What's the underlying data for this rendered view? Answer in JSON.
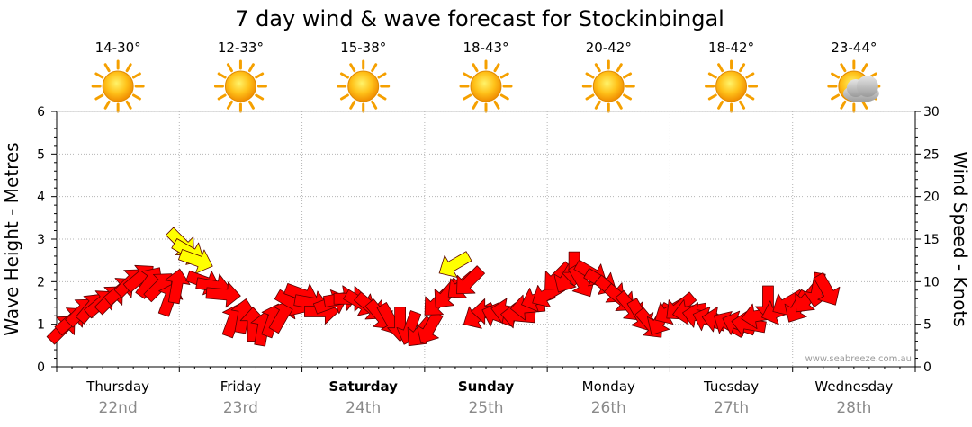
{
  "chart_data": {
    "type": "scatter",
    "title": "7 day wind & wave forecast for Stockinbingal",
    "ylabel_left": "Wave Height - Metres",
    "ylabel_right": "Wind Speed - Knots",
    "ylim_left": [
      0,
      6
    ],
    "ylim_right": [
      0,
      30
    ],
    "yticks_left": [
      "0",
      "1",
      "2",
      "3",
      "4",
      "5",
      "6"
    ],
    "yticks_right": [
      "0",
      "5",
      "10",
      "15",
      "20",
      "25",
      "30"
    ],
    "grid": true,
    "credit": "www.seabreeze.com.au",
    "days": [
      {
        "name": "Thursday",
        "date": "22nd",
        "temp": "14-30°",
        "icon": "sun-icon",
        "bold": false
      },
      {
        "name": "Friday",
        "date": "23rd",
        "temp": "12-33°",
        "icon": "sun-icon",
        "bold": false
      },
      {
        "name": "Saturday",
        "date": "24th",
        "temp": "15-38°",
        "icon": "sun-icon",
        "bold": true
      },
      {
        "name": "Sunday",
        "date": "25th",
        "temp": "18-43°",
        "icon": "sun-icon",
        "bold": true
      },
      {
        "name": "Monday",
        "date": "26th",
        "temp": "20-42°",
        "icon": "sun-icon",
        "bold": false
      },
      {
        "name": "Tuesday",
        "date": "27th",
        "temp": "18-42°",
        "icon": "sun-icon",
        "bold": false
      },
      {
        "name": "Wednesday",
        "date": "28th",
        "temp": "23-44°",
        "icon": "partly-cloudy-icon",
        "bold": false
      }
    ],
    "series": [
      {
        "name": "Wind Speed",
        "units": "knots",
        "color_normal": "#ff0000",
        "color_highlight": "#ffff00",
        "points": [
          {
            "t": 0.05,
            "v": 4.5,
            "dir": 225,
            "c": "normal"
          },
          {
            "t": 0.12,
            "v": 5.5,
            "dir": 230,
            "c": "normal"
          },
          {
            "t": 0.2,
            "v": 6.5,
            "dir": 225,
            "c": "normal"
          },
          {
            "t": 0.28,
            "v": 7.0,
            "dir": 220,
            "c": "normal"
          },
          {
            "t": 0.36,
            "v": 7.5,
            "dir": 230,
            "c": "normal"
          },
          {
            "t": 0.44,
            "v": 8.0,
            "dir": 225,
            "c": "normal"
          },
          {
            "t": 0.52,
            "v": 9.0,
            "dir": 230,
            "c": "normal"
          },
          {
            "t": 0.6,
            "v": 10.0,
            "dir": 225,
            "c": "normal"
          },
          {
            "t": 0.68,
            "v": 10.5,
            "dir": 230,
            "c": "normal"
          },
          {
            "t": 0.76,
            "v": 10.0,
            "dir": 215,
            "c": "normal"
          },
          {
            "t": 0.84,
            "v": 9.5,
            "dir": 225,
            "c": "normal"
          },
          {
            "t": 0.92,
            "v": 8.0,
            "dir": 200,
            "c": "normal"
          },
          {
            "t": 0.98,
            "v": 9.5,
            "dir": 190,
            "c": "normal"
          },
          {
            "t": 1.02,
            "v": 14.5,
            "dir": 315,
            "c": "highlight"
          },
          {
            "t": 1.08,
            "v": 13.5,
            "dir": 300,
            "c": "highlight"
          },
          {
            "t": 1.14,
            "v": 12.5,
            "dir": 290,
            "c": "highlight"
          },
          {
            "t": 1.2,
            "v": 10.0,
            "dir": 290,
            "c": "normal"
          },
          {
            "t": 1.28,
            "v": 9.5,
            "dir": 280,
            "c": "normal"
          },
          {
            "t": 1.36,
            "v": 8.5,
            "dir": 275,
            "c": "normal"
          },
          {
            "t": 1.44,
            "v": 5.5,
            "dir": 200,
            "c": "normal"
          },
          {
            "t": 1.52,
            "v": 6.0,
            "dir": 190,
            "c": "normal"
          },
          {
            "t": 1.6,
            "v": 5.0,
            "dir": 180,
            "c": "normal"
          },
          {
            "t": 1.68,
            "v": 4.5,
            "dir": 190,
            "c": "normal"
          },
          {
            "t": 1.76,
            "v": 5.5,
            "dir": 200,
            "c": "normal"
          },
          {
            "t": 1.84,
            "v": 6.0,
            "dir": 210,
            "c": "normal"
          },
          {
            "t": 1.92,
            "v": 7.5,
            "dir": 300,
            "c": "normal"
          },
          {
            "t": 2.0,
            "v": 8.5,
            "dir": 290,
            "c": "normal"
          },
          {
            "t": 2.08,
            "v": 7.5,
            "dir": 280,
            "c": "normal"
          },
          {
            "t": 2.16,
            "v": 6.5,
            "dir": 270,
            "c": "normal"
          },
          {
            "t": 2.24,
            "v": 7.5,
            "dir": 250,
            "c": "normal"
          },
          {
            "t": 2.32,
            "v": 8.0,
            "dir": 260,
            "c": "normal"
          },
          {
            "t": 2.4,
            "v": 8.0,
            "dir": 270,
            "c": "normal"
          },
          {
            "t": 2.48,
            "v": 7.5,
            "dir": 300,
            "c": "normal"
          },
          {
            "t": 2.56,
            "v": 7.0,
            "dir": 310,
            "c": "normal"
          },
          {
            "t": 2.64,
            "v": 6.0,
            "dir": 320,
            "c": "normal"
          },
          {
            "t": 2.72,
            "v": 5.5,
            "dir": 330,
            "c": "normal"
          },
          {
            "t": 2.8,
            "v": 5.0,
            "dir": 0,
            "c": "normal"
          },
          {
            "t": 2.88,
            "v": 4.5,
            "dir": 20,
            "c": "normal"
          },
          {
            "t": 2.96,
            "v": 4.0,
            "dir": 40,
            "c": "normal"
          },
          {
            "t": 3.04,
            "v": 4.5,
            "dir": 30,
            "c": "normal"
          },
          {
            "t": 3.1,
            "v": 7.5,
            "dir": 45,
            "c": "normal"
          },
          {
            "t": 3.18,
            "v": 8.5,
            "dir": 40,
            "c": "normal"
          },
          {
            "t": 3.24,
            "v": 12.0,
            "dir": 60,
            "c": "highlight"
          },
          {
            "t": 3.3,
            "v": 9.5,
            "dir": 50,
            "c": "normal"
          },
          {
            "t": 3.36,
            "v": 10.0,
            "dir": 45,
            "c": "normal"
          },
          {
            "t": 3.44,
            "v": 6.0,
            "dir": 60,
            "c": "normal"
          },
          {
            "t": 3.52,
            "v": 6.5,
            "dir": 90,
            "c": "normal"
          },
          {
            "t": 3.6,
            "v": 6.0,
            "dir": 110,
            "c": "normal"
          },
          {
            "t": 3.68,
            "v": 6.5,
            "dir": 100,
            "c": "normal"
          },
          {
            "t": 3.76,
            "v": 6.0,
            "dir": 95,
            "c": "normal"
          },
          {
            "t": 3.84,
            "v": 7.0,
            "dir": 85,
            "c": "normal"
          },
          {
            "t": 3.92,
            "v": 8.0,
            "dir": 70,
            "c": "normal"
          },
          {
            "t": 4.0,
            "v": 8.5,
            "dir": 60,
            "c": "normal"
          },
          {
            "t": 4.08,
            "v": 10.5,
            "dir": 45,
            "c": "normal"
          },
          {
            "t": 4.16,
            "v": 10.5,
            "dir": 30,
            "c": "normal"
          },
          {
            "t": 4.22,
            "v": 11.5,
            "dir": 0,
            "c": "normal"
          },
          {
            "t": 4.28,
            "v": 10.0,
            "dir": 330,
            "c": "normal"
          },
          {
            "t": 4.36,
            "v": 11.0,
            "dir": 300,
            "c": "normal"
          },
          {
            "t": 4.44,
            "v": 10.0,
            "dir": 300,
            "c": "normal"
          },
          {
            "t": 4.52,
            "v": 9.0,
            "dir": 310,
            "c": "normal"
          },
          {
            "t": 4.6,
            "v": 8.0,
            "dir": 310,
            "c": "normal"
          },
          {
            "t": 4.68,
            "v": 7.0,
            "dir": 320,
            "c": "normal"
          },
          {
            "t": 4.76,
            "v": 6.0,
            "dir": 330,
            "c": "normal"
          },
          {
            "t": 4.84,
            "v": 5.0,
            "dir": 320,
            "c": "normal"
          },
          {
            "t": 4.92,
            "v": 5.5,
            "dir": 30,
            "c": "normal"
          },
          {
            "t": 5.0,
            "v": 6.5,
            "dir": 60,
            "c": "normal"
          },
          {
            "t": 5.08,
            "v": 7.0,
            "dir": 50,
            "c": "normal"
          },
          {
            "t": 5.16,
            "v": 6.5,
            "dir": 80,
            "c": "normal"
          },
          {
            "t": 5.24,
            "v": 6.0,
            "dir": 100,
            "c": "normal"
          },
          {
            "t": 5.32,
            "v": 5.5,
            "dir": 110,
            "c": "normal"
          },
          {
            "t": 5.4,
            "v": 5.5,
            "dir": 100,
            "c": "normal"
          },
          {
            "t": 5.48,
            "v": 5.0,
            "dir": 120,
            "c": "normal"
          },
          {
            "t": 5.56,
            "v": 5.0,
            "dir": 110,
            "c": "normal"
          },
          {
            "t": 5.64,
            "v": 5.0,
            "dir": 100,
            "c": "normal"
          },
          {
            "t": 5.72,
            "v": 6.0,
            "dir": 80,
            "c": "normal"
          },
          {
            "t": 5.8,
            "v": 7.5,
            "dir": 0,
            "c": "normal"
          },
          {
            "t": 5.88,
            "v": 6.5,
            "dir": 70,
            "c": "normal"
          },
          {
            "t": 5.96,
            "v": 7.5,
            "dir": 60,
            "c": "normal"
          },
          {
            "t": 6.04,
            "v": 7.0,
            "dir": 30,
            "c": "normal"
          },
          {
            "t": 6.12,
            "v": 8.0,
            "dir": 40,
            "c": "normal"
          },
          {
            "t": 6.2,
            "v": 9.0,
            "dir": 10,
            "c": "normal"
          },
          {
            "t": 6.28,
            "v": 9.0,
            "dir": 330,
            "c": "normal"
          }
        ]
      }
    ]
  }
}
